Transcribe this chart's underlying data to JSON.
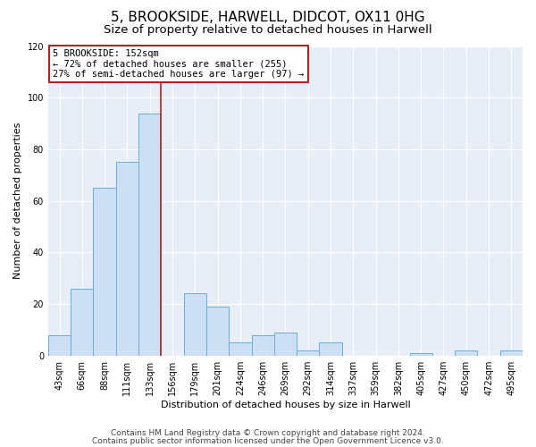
{
  "title": "5, BROOKSIDE, HARWELL, DIDCOT, OX11 0HG",
  "subtitle": "Size of property relative to detached houses in Harwell",
  "xlabel": "Distribution of detached houses by size in Harwell",
  "ylabel": "Number of detached properties",
  "bar_labels": [
    "43sqm",
    "66sqm",
    "88sqm",
    "111sqm",
    "133sqm",
    "156sqm",
    "179sqm",
    "201sqm",
    "224sqm",
    "246sqm",
    "269sqm",
    "292sqm",
    "314sqm",
    "337sqm",
    "359sqm",
    "382sqm",
    "405sqm",
    "427sqm",
    "450sqm",
    "472sqm",
    "495sqm"
  ],
  "bar_values": [
    8,
    26,
    65,
    75,
    94,
    0,
    24,
    19,
    5,
    8,
    9,
    2,
    5,
    0,
    0,
    0,
    1,
    0,
    2,
    0,
    2
  ],
  "bar_color": "#ccdff5",
  "bar_edge_color": "#6aaed6",
  "vline_x_index": 4.5,
  "vline_color": "#b22222",
  "annotation_title": "5 BROOKSIDE: 152sqm",
  "annotation_line1": "← 72% of detached houses are smaller (255)",
  "annotation_line2": "27% of semi-detached houses are larger (97) →",
  "annotation_box_edge_color": "#b22222",
  "ylim": [
    0,
    120
  ],
  "yticks": [
    0,
    20,
    40,
    60,
    80,
    100,
    120
  ],
  "footer1": "Contains HM Land Registry data © Crown copyright and database right 2024.",
  "footer2": "Contains public sector information licensed under the Open Government Licence v3.0.",
  "bg_color": "#ffffff",
  "plot_bg_color": "#e8eef8",
  "grid_color": "#ffffff",
  "title_fontsize": 11,
  "subtitle_fontsize": 9.5,
  "label_fontsize": 8,
  "tick_fontsize": 7,
  "footer_fontsize": 6.5
}
